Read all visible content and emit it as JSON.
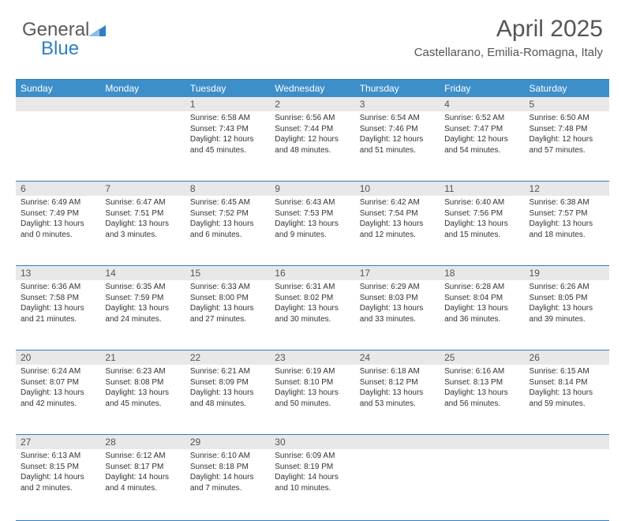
{
  "logo": {
    "word1": "General",
    "word2": "Blue",
    "tri_color": "#2f7fc2"
  },
  "header": {
    "month_title": "April 2025",
    "location": "Castellarano, Emilia-Romagna, Italy"
  },
  "colors": {
    "header_bg": "#3d8fc9",
    "border": "#2f7fc2",
    "daynum_bg": "#e8e8e8",
    "text": "#333333",
    "title_text": "#555555"
  },
  "day_names": [
    "Sunday",
    "Monday",
    "Tuesday",
    "Wednesday",
    "Thursday",
    "Friday",
    "Saturday"
  ],
  "weeks": [
    [
      {
        "n": "",
        "lines": []
      },
      {
        "n": "",
        "lines": []
      },
      {
        "n": "1",
        "lines": [
          "Sunrise: 6:58 AM",
          "Sunset: 7:43 PM",
          "Daylight: 12 hours",
          "and 45 minutes."
        ]
      },
      {
        "n": "2",
        "lines": [
          "Sunrise: 6:56 AM",
          "Sunset: 7:44 PM",
          "Daylight: 12 hours",
          "and 48 minutes."
        ]
      },
      {
        "n": "3",
        "lines": [
          "Sunrise: 6:54 AM",
          "Sunset: 7:46 PM",
          "Daylight: 12 hours",
          "and 51 minutes."
        ]
      },
      {
        "n": "4",
        "lines": [
          "Sunrise: 6:52 AM",
          "Sunset: 7:47 PM",
          "Daylight: 12 hours",
          "and 54 minutes."
        ]
      },
      {
        "n": "5",
        "lines": [
          "Sunrise: 6:50 AM",
          "Sunset: 7:48 PM",
          "Daylight: 12 hours",
          "and 57 minutes."
        ]
      }
    ],
    [
      {
        "n": "6",
        "lines": [
          "Sunrise: 6:49 AM",
          "Sunset: 7:49 PM",
          "Daylight: 13 hours",
          "and 0 minutes."
        ]
      },
      {
        "n": "7",
        "lines": [
          "Sunrise: 6:47 AM",
          "Sunset: 7:51 PM",
          "Daylight: 13 hours",
          "and 3 minutes."
        ]
      },
      {
        "n": "8",
        "lines": [
          "Sunrise: 6:45 AM",
          "Sunset: 7:52 PM",
          "Daylight: 13 hours",
          "and 6 minutes."
        ]
      },
      {
        "n": "9",
        "lines": [
          "Sunrise: 6:43 AM",
          "Sunset: 7:53 PM",
          "Daylight: 13 hours",
          "and 9 minutes."
        ]
      },
      {
        "n": "10",
        "lines": [
          "Sunrise: 6:42 AM",
          "Sunset: 7:54 PM",
          "Daylight: 13 hours",
          "and 12 minutes."
        ]
      },
      {
        "n": "11",
        "lines": [
          "Sunrise: 6:40 AM",
          "Sunset: 7:56 PM",
          "Daylight: 13 hours",
          "and 15 minutes."
        ]
      },
      {
        "n": "12",
        "lines": [
          "Sunrise: 6:38 AM",
          "Sunset: 7:57 PM",
          "Daylight: 13 hours",
          "and 18 minutes."
        ]
      }
    ],
    [
      {
        "n": "13",
        "lines": [
          "Sunrise: 6:36 AM",
          "Sunset: 7:58 PM",
          "Daylight: 13 hours",
          "and 21 minutes."
        ]
      },
      {
        "n": "14",
        "lines": [
          "Sunrise: 6:35 AM",
          "Sunset: 7:59 PM",
          "Daylight: 13 hours",
          "and 24 minutes."
        ]
      },
      {
        "n": "15",
        "lines": [
          "Sunrise: 6:33 AM",
          "Sunset: 8:00 PM",
          "Daylight: 13 hours",
          "and 27 minutes."
        ]
      },
      {
        "n": "16",
        "lines": [
          "Sunrise: 6:31 AM",
          "Sunset: 8:02 PM",
          "Daylight: 13 hours",
          "and 30 minutes."
        ]
      },
      {
        "n": "17",
        "lines": [
          "Sunrise: 6:29 AM",
          "Sunset: 8:03 PM",
          "Daylight: 13 hours",
          "and 33 minutes."
        ]
      },
      {
        "n": "18",
        "lines": [
          "Sunrise: 6:28 AM",
          "Sunset: 8:04 PM",
          "Daylight: 13 hours",
          "and 36 minutes."
        ]
      },
      {
        "n": "19",
        "lines": [
          "Sunrise: 6:26 AM",
          "Sunset: 8:05 PM",
          "Daylight: 13 hours",
          "and 39 minutes."
        ]
      }
    ],
    [
      {
        "n": "20",
        "lines": [
          "Sunrise: 6:24 AM",
          "Sunset: 8:07 PM",
          "Daylight: 13 hours",
          "and 42 minutes."
        ]
      },
      {
        "n": "21",
        "lines": [
          "Sunrise: 6:23 AM",
          "Sunset: 8:08 PM",
          "Daylight: 13 hours",
          "and 45 minutes."
        ]
      },
      {
        "n": "22",
        "lines": [
          "Sunrise: 6:21 AM",
          "Sunset: 8:09 PM",
          "Daylight: 13 hours",
          "and 48 minutes."
        ]
      },
      {
        "n": "23",
        "lines": [
          "Sunrise: 6:19 AM",
          "Sunset: 8:10 PM",
          "Daylight: 13 hours",
          "and 50 minutes."
        ]
      },
      {
        "n": "24",
        "lines": [
          "Sunrise: 6:18 AM",
          "Sunset: 8:12 PM",
          "Daylight: 13 hours",
          "and 53 minutes."
        ]
      },
      {
        "n": "25",
        "lines": [
          "Sunrise: 6:16 AM",
          "Sunset: 8:13 PM",
          "Daylight: 13 hours",
          "and 56 minutes."
        ]
      },
      {
        "n": "26",
        "lines": [
          "Sunrise: 6:15 AM",
          "Sunset: 8:14 PM",
          "Daylight: 13 hours",
          "and 59 minutes."
        ]
      }
    ],
    [
      {
        "n": "27",
        "lines": [
          "Sunrise: 6:13 AM",
          "Sunset: 8:15 PM",
          "Daylight: 14 hours",
          "and 2 minutes."
        ]
      },
      {
        "n": "28",
        "lines": [
          "Sunrise: 6:12 AM",
          "Sunset: 8:17 PM",
          "Daylight: 14 hours",
          "and 4 minutes."
        ]
      },
      {
        "n": "29",
        "lines": [
          "Sunrise: 6:10 AM",
          "Sunset: 8:18 PM",
          "Daylight: 14 hours",
          "and 7 minutes."
        ]
      },
      {
        "n": "30",
        "lines": [
          "Sunrise: 6:09 AM",
          "Sunset: 8:19 PM",
          "Daylight: 14 hours",
          "and 10 minutes."
        ]
      },
      {
        "n": "",
        "lines": []
      },
      {
        "n": "",
        "lines": []
      },
      {
        "n": "",
        "lines": []
      }
    ]
  ]
}
